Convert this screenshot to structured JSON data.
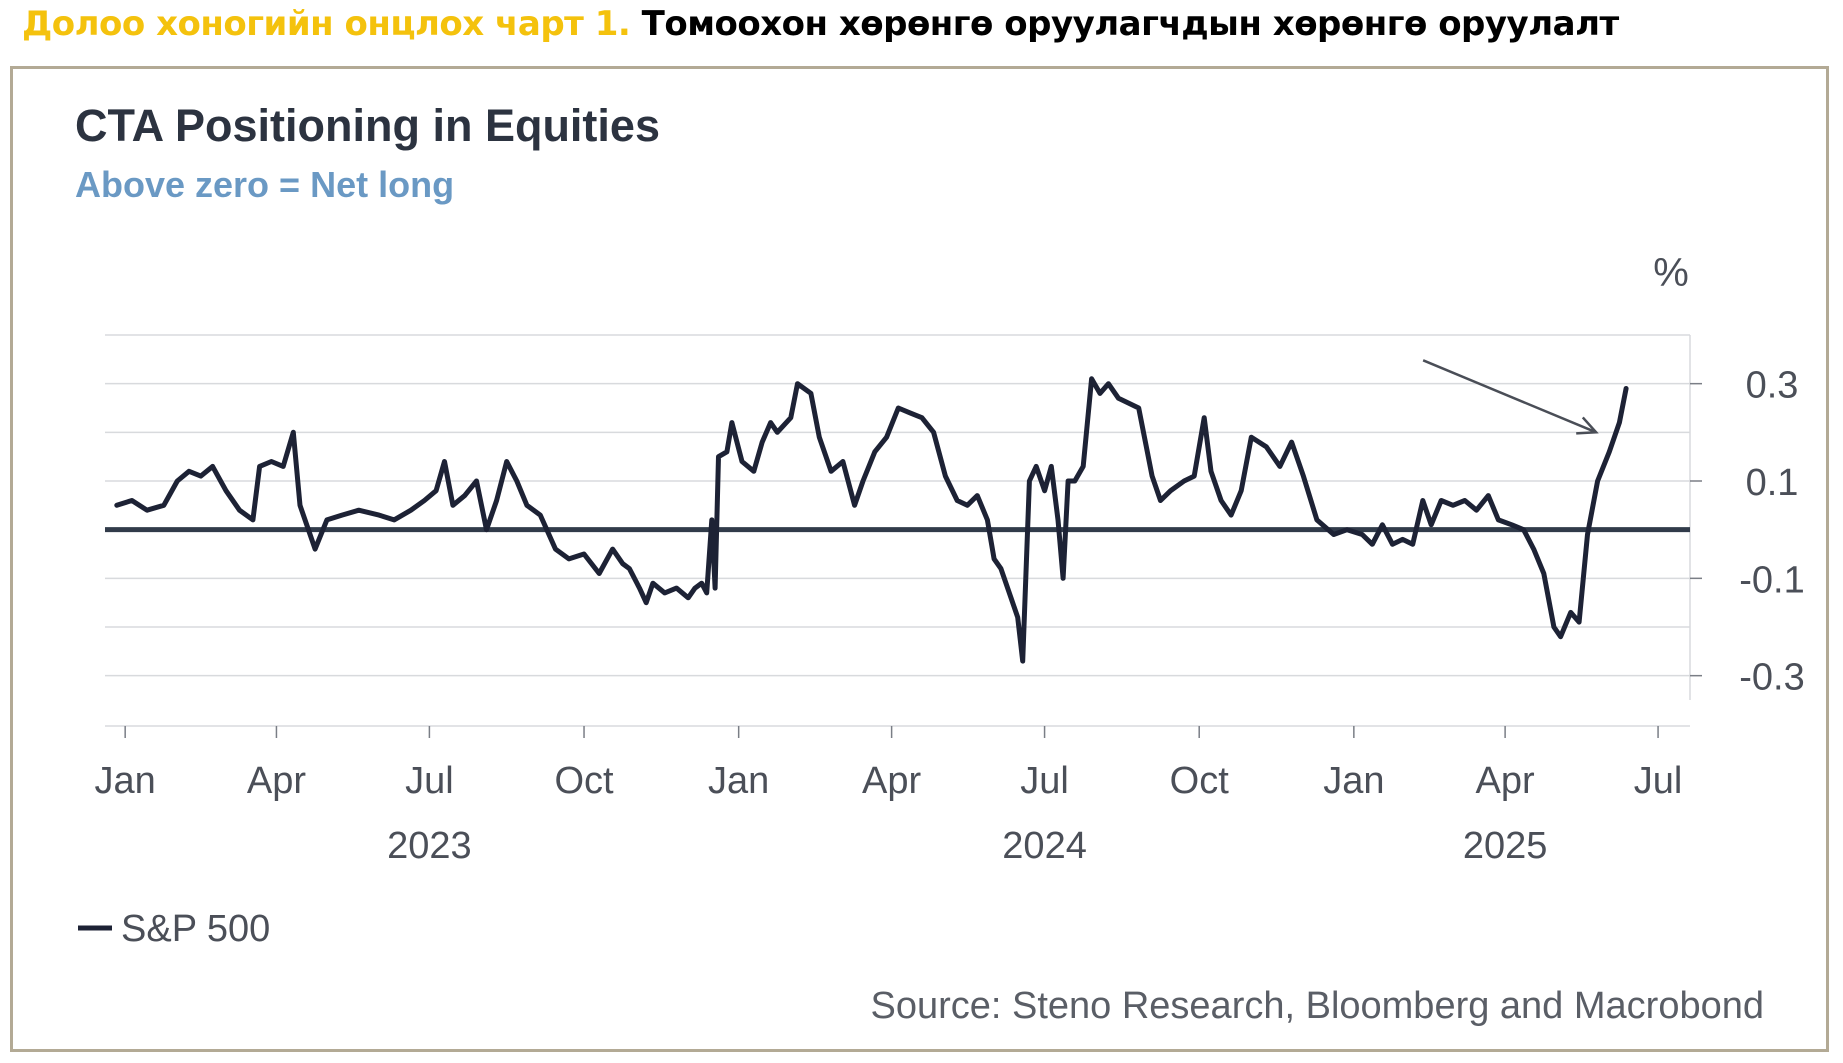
{
  "heading": {
    "label": "Долоо хоногийн онцлох чарт 1.",
    "text": "Томоохон хөрөнгө оруулагчдын хөрөнгө оруулалт"
  },
  "colors": {
    "label": "#f4c20d",
    "line": "#1d2235",
    "zero_line": "#313b4a",
    "grid": "#d8dadd",
    "title": "#2c3340",
    "subtitle": "#6a99c4",
    "axis_text": "#4b4f58",
    "frame": "#b3aa95"
  },
  "chart_data": {
    "type": "line",
    "title": "CTA Positioning in Equities",
    "subtitle": "Above zero = Net long",
    "ylabel": "%",
    "ylim": [
      -0.35,
      0.4
    ],
    "yticks": [
      0.3,
      0.1,
      -0.1,
      -0.3
    ],
    "ytick_labels": [
      "0.3",
      "0.1",
      "-0.1",
      "-0.3"
    ],
    "xlim": [
      "2022-12-20",
      "2025-07-20"
    ],
    "xticks": [
      {
        "date": "2023-01-01",
        "label": "Jan"
      },
      {
        "date": "2023-04-01",
        "label": "Apr"
      },
      {
        "date": "2023-07-01",
        "label": "Jul"
      },
      {
        "date": "2023-10-01",
        "label": "Oct"
      },
      {
        "date": "2024-01-01",
        "label": "Jan"
      },
      {
        "date": "2024-04-01",
        "label": "Apr"
      },
      {
        "date": "2024-07-01",
        "label": "Jul"
      },
      {
        "date": "2024-10-01",
        "label": "Oct"
      },
      {
        "date": "2025-01-01",
        "label": "Jan"
      },
      {
        "date": "2025-04-01",
        "label": "Apr"
      },
      {
        "date": "2025-07-01",
        "label": "Jul"
      }
    ],
    "year_labels": [
      {
        "date": "2023-07-01",
        "label": "2023"
      },
      {
        "date": "2024-07-01",
        "label": "2024"
      },
      {
        "date": "2025-04-01",
        "label": "2025"
      }
    ],
    "grid": true,
    "legend_position": "bottom-left",
    "source": "Source: Steno Research, Bloomberg and Macrobond",
    "annotation": "arrow pointing at latest value",
    "series": [
      {
        "name": "S&P 500",
        "points": [
          [
            "2022-12-27",
            0.05
          ],
          [
            "2023-01-05",
            0.06
          ],
          [
            "2023-01-14",
            0.04
          ],
          [
            "2023-01-24",
            0.05
          ],
          [
            "2023-02-01",
            0.1
          ],
          [
            "2023-02-08",
            0.12
          ],
          [
            "2023-02-15",
            0.11
          ],
          [
            "2023-02-22",
            0.13
          ],
          [
            "2023-03-02",
            0.08
          ],
          [
            "2023-03-10",
            0.04
          ],
          [
            "2023-03-18",
            0.02
          ],
          [
            "2023-03-22",
            0.13
          ],
          [
            "2023-03-29",
            0.14
          ],
          [
            "2023-04-05",
            0.13
          ],
          [
            "2023-04-11",
            0.2
          ],
          [
            "2023-04-15",
            0.05
          ],
          [
            "2023-04-20",
            0.0
          ],
          [
            "2023-04-24",
            -0.04
          ],
          [
            "2023-05-01",
            0.02
          ],
          [
            "2023-05-10",
            0.03
          ],
          [
            "2023-05-20",
            0.04
          ],
          [
            "2023-06-01",
            0.03
          ],
          [
            "2023-06-10",
            0.02
          ],
          [
            "2023-06-20",
            0.04
          ],
          [
            "2023-06-28",
            0.06
          ],
          [
            "2023-07-05",
            0.08
          ],
          [
            "2023-07-10",
            0.14
          ],
          [
            "2023-07-15",
            0.05
          ],
          [
            "2023-07-22",
            0.07
          ],
          [
            "2023-07-29",
            0.1
          ],
          [
            "2023-08-04",
            0.0
          ],
          [
            "2023-08-10",
            0.06
          ],
          [
            "2023-08-16",
            0.14
          ],
          [
            "2023-08-22",
            0.1
          ],
          [
            "2023-08-28",
            0.05
          ],
          [
            "2023-09-05",
            0.03
          ],
          [
            "2023-09-14",
            -0.04
          ],
          [
            "2023-09-22",
            -0.06
          ],
          [
            "2023-10-01",
            -0.05
          ],
          [
            "2023-10-10",
            -0.09
          ],
          [
            "2023-10-18",
            -0.04
          ],
          [
            "2023-10-24",
            -0.07
          ],
          [
            "2023-10-28",
            -0.08
          ],
          [
            "2023-11-03",
            -0.12
          ],
          [
            "2023-11-07",
            -0.15
          ],
          [
            "2023-11-11",
            -0.11
          ],
          [
            "2023-11-18",
            -0.13
          ],
          [
            "2023-11-25",
            -0.12
          ],
          [
            "2023-12-02",
            -0.14
          ],
          [
            "2023-12-06",
            -0.12
          ],
          [
            "2023-12-10",
            -0.11
          ],
          [
            "2023-12-13",
            -0.13
          ],
          [
            "2023-12-16",
            0.02
          ],
          [
            "2023-12-18",
            -0.12
          ],
          [
            "2023-12-20",
            0.15
          ],
          [
            "2023-12-25",
            0.16
          ],
          [
            "2023-12-28",
            0.22
          ],
          [
            "2024-01-03",
            0.14
          ],
          [
            "2024-01-10",
            0.12
          ],
          [
            "2024-01-15",
            0.18
          ],
          [
            "2024-01-20",
            0.22
          ],
          [
            "2024-01-24",
            0.2
          ],
          [
            "2024-02-01",
            0.23
          ],
          [
            "2024-02-05",
            0.3
          ],
          [
            "2024-02-13",
            0.28
          ],
          [
            "2024-02-18",
            0.19
          ],
          [
            "2024-02-25",
            0.12
          ],
          [
            "2024-03-03",
            0.14
          ],
          [
            "2024-03-10",
            0.05
          ],
          [
            "2024-03-15",
            0.1
          ],
          [
            "2024-03-22",
            0.16
          ],
          [
            "2024-03-29",
            0.19
          ],
          [
            "2024-04-05",
            0.25
          ],
          [
            "2024-04-12",
            0.24
          ],
          [
            "2024-04-19",
            0.23
          ],
          [
            "2024-04-26",
            0.2
          ],
          [
            "2024-05-03",
            0.11
          ],
          [
            "2024-05-10",
            0.06
          ],
          [
            "2024-05-16",
            0.05
          ],
          [
            "2024-05-22",
            0.07
          ],
          [
            "2024-05-28",
            0.02
          ],
          [
            "2024-06-01",
            -0.06
          ],
          [
            "2024-06-05",
            -0.08
          ],
          [
            "2024-06-11",
            -0.14
          ],
          [
            "2024-06-15",
            -0.18
          ],
          [
            "2024-06-18",
            -0.27
          ],
          [
            "2024-06-22",
            0.1
          ],
          [
            "2024-06-26",
            0.13
          ],
          [
            "2024-07-01",
            0.08
          ],
          [
            "2024-07-05",
            0.13
          ],
          [
            "2024-07-09",
            0.02
          ],
          [
            "2024-07-12",
            -0.1
          ],
          [
            "2024-07-15",
            0.1
          ],
          [
            "2024-07-19",
            0.1
          ],
          [
            "2024-07-24",
            0.13
          ],
          [
            "2024-07-29",
            0.31
          ],
          [
            "2024-08-03",
            0.28
          ],
          [
            "2024-08-08",
            0.3
          ],
          [
            "2024-08-14",
            0.27
          ],
          [
            "2024-08-20",
            0.26
          ],
          [
            "2024-08-26",
            0.25
          ],
          [
            "2024-09-03",
            0.11
          ],
          [
            "2024-09-08",
            0.06
          ],
          [
            "2024-09-14",
            0.08
          ],
          [
            "2024-09-22",
            0.1
          ],
          [
            "2024-09-28",
            0.11
          ],
          [
            "2024-10-04",
            0.23
          ],
          [
            "2024-10-08",
            0.12
          ],
          [
            "2024-10-14",
            0.06
          ],
          [
            "2024-10-20",
            0.03
          ],
          [
            "2024-10-26",
            0.08
          ],
          [
            "2024-11-01",
            0.19
          ],
          [
            "2024-11-10",
            0.17
          ],
          [
            "2024-11-18",
            0.13
          ],
          [
            "2024-11-25",
            0.18
          ],
          [
            "2024-12-02",
            0.11
          ],
          [
            "2024-12-10",
            0.02
          ],
          [
            "2024-12-20",
            -0.01
          ],
          [
            "2024-12-28",
            0.0
          ],
          [
            "2025-01-06",
            -0.01
          ],
          [
            "2025-01-12",
            -0.03
          ],
          [
            "2025-01-18",
            0.01
          ],
          [
            "2025-01-24",
            -0.03
          ],
          [
            "2025-01-30",
            -0.02
          ],
          [
            "2025-02-05",
            -0.03
          ],
          [
            "2025-02-11",
            0.06
          ],
          [
            "2025-02-16",
            0.01
          ],
          [
            "2025-02-22",
            0.06
          ],
          [
            "2025-03-01",
            0.05
          ],
          [
            "2025-03-08",
            0.06
          ],
          [
            "2025-03-15",
            0.04
          ],
          [
            "2025-03-22",
            0.07
          ],
          [
            "2025-03-28",
            0.02
          ],
          [
            "2025-04-05",
            0.01
          ],
          [
            "2025-04-12",
            0.0
          ],
          [
            "2025-04-18",
            -0.04
          ],
          [
            "2025-04-24",
            -0.09
          ],
          [
            "2025-04-30",
            -0.2
          ],
          [
            "2025-05-04",
            -0.22
          ],
          [
            "2025-05-10",
            -0.17
          ],
          [
            "2025-05-15",
            -0.19
          ],
          [
            "2025-05-20",
            -0.01
          ],
          [
            "2025-05-26",
            0.1
          ],
          [
            "2025-06-02",
            0.16
          ],
          [
            "2025-06-08",
            0.22
          ],
          [
            "2025-06-12",
            0.29
          ]
        ]
      }
    ]
  }
}
